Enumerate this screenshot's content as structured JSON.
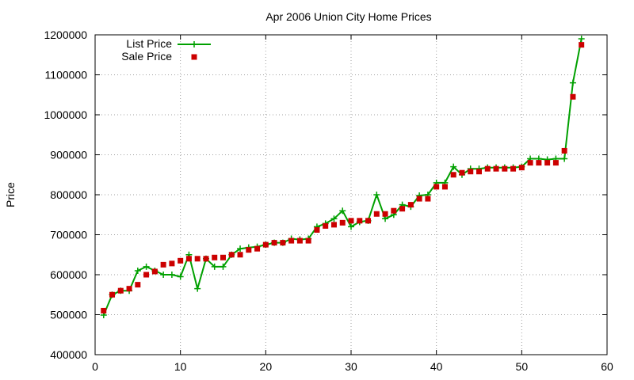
{
  "chart_data": {
    "type": "line",
    "title": "Apr 2006 Union City Home Prices",
    "xlabel": "",
    "ylabel": "Price",
    "xlim": [
      0,
      60
    ],
    "ylim": [
      400000,
      1200000
    ],
    "x_ticks": [
      "0",
      "10",
      "20",
      "30",
      "40",
      "50",
      "60"
    ],
    "y_ticks": [
      "400000",
      "500000",
      "600000",
      "700000",
      "800000",
      "900000",
      "1000000",
      "1100000",
      "1200000"
    ],
    "grid": true,
    "legend_position": "top-left",
    "x": [
      1,
      2,
      3,
      4,
      5,
      6,
      7,
      8,
      9,
      10,
      11,
      12,
      13,
      14,
      15,
      16,
      17,
      18,
      19,
      20,
      21,
      22,
      23,
      24,
      25,
      26,
      27,
      28,
      29,
      30,
      31,
      32,
      33,
      34,
      35,
      36,
      37,
      38,
      39,
      40,
      41,
      42,
      43,
      44,
      45,
      46,
      47,
      48,
      49,
      50,
      51,
      52,
      53,
      54,
      55,
      56,
      57
    ],
    "series": [
      {
        "name": "List Price",
        "style": "line+plus",
        "color": "#00a000",
        "values": [
          499000,
          550000,
          560000,
          560000,
          610000,
          620000,
          610000,
          600000,
          600000,
          595000,
          650000,
          565000,
          640000,
          620000,
          620000,
          650000,
          665000,
          668000,
          670000,
          675000,
          680000,
          680000,
          690000,
          688000,
          690000,
          720000,
          728000,
          740000,
          760000,
          720000,
          732000,
          735000,
          800000,
          740000,
          750000,
          775000,
          770000,
          798000,
          800000,
          830000,
          830000,
          870000,
          850000,
          865000,
          865000,
          868000,
          868000,
          868000,
          868000,
          870000,
          890000,
          890000,
          888000,
          890000,
          890000,
          1080000,
          1190000
        ]
      },
      {
        "name": "Sale Price",
        "style": "square",
        "color": "#cc0000",
        "values": [
          510000,
          550000,
          560000,
          565000,
          575000,
          600000,
          608000,
          625000,
          628000,
          635000,
          640000,
          640000,
          640000,
          643000,
          643000,
          650000,
          650000,
          662000,
          665000,
          675000,
          680000,
          680000,
          685000,
          685000,
          685000,
          712000,
          722000,
          725000,
          730000,
          735000,
          735000,
          735000,
          752000,
          752000,
          760000,
          765000,
          775000,
          790000,
          790000,
          820000,
          820000,
          850000,
          855000,
          858000,
          858000,
          865000,
          865000,
          865000,
          865000,
          868000,
          880000,
          880000,
          880000,
          880000,
          910000,
          1045000,
          1175000
        ]
      }
    ]
  }
}
